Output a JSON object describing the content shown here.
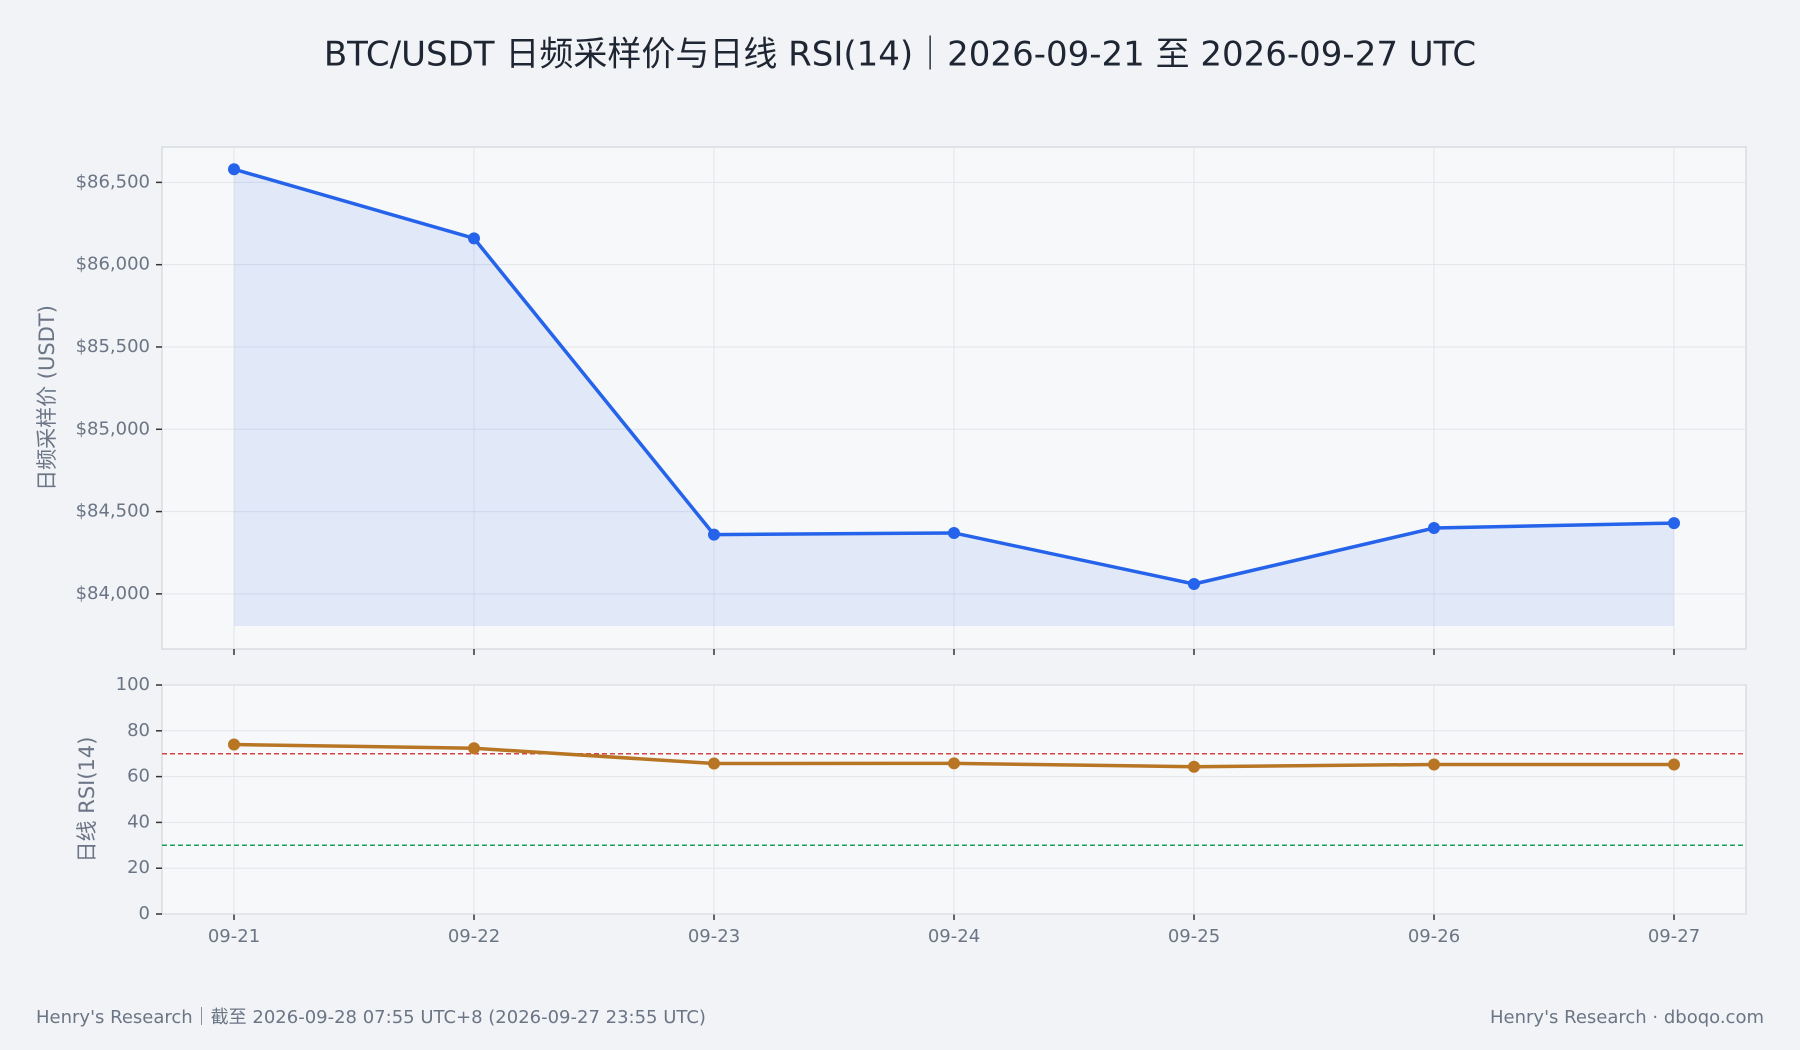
{
  "title": "BTC/USDT 日频采样价与日线 RSI(14)｜2026-09-21 至 2026-09-27 UTC",
  "footer_left": "Henry's Research｜截至 2026-09-28 07:55 UTC+8 (2026-09-27 23:55 UTC)",
  "footer_right": "Henry's Research · dboqo.com",
  "chart_data": [
    {
      "type": "area",
      "ylabel": "日频采样价 (USDT)",
      "categories": [
        "09-21",
        "09-22",
        "09-23",
        "09-24",
        "09-25",
        "09-26",
        "09-27"
      ],
      "values": [
        86580,
        86160,
        84360,
        84370,
        84060,
        84400,
        84430
      ],
      "color": "#2563eb",
      "grid": true,
      "ylim": [
        83665,
        86715
      ],
      "yticks": [
        {
          "value": 84000,
          "label": "$84,000"
        },
        {
          "value": 84500,
          "label": "$84,500"
        },
        {
          "value": 85000,
          "label": "$85,000"
        },
        {
          "value": 85500,
          "label": "$85,500"
        },
        {
          "value": 86000,
          "label": "$86,000"
        },
        {
          "value": 86500,
          "label": "$86,500"
        }
      ]
    },
    {
      "type": "line",
      "ylabel": "日线 RSI(14)",
      "categories": [
        "09-21",
        "09-22",
        "09-23",
        "09-24",
        "09-25",
        "09-26",
        "09-27"
      ],
      "values": [
        74,
        72.4,
        65.7,
        65.8,
        64.3,
        65.3,
        65.3
      ],
      "color": "#b87624",
      "grid": true,
      "ylim": [
        0,
        100
      ],
      "yticks": [
        0,
        20,
        40,
        60,
        80,
        100
      ],
      "reference_lines": [
        {
          "value": 70,
          "color": "#d04545"
        },
        {
          "value": 30,
          "color": "#1f9d5f"
        }
      ]
    }
  ]
}
